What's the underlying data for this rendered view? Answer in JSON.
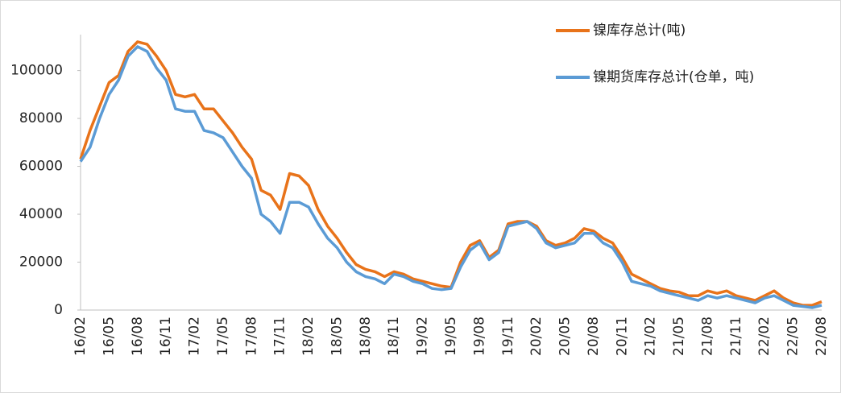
{
  "chart_data": {
    "type": "line",
    "categories": [
      "16/02",
      null,
      null,
      "16/05",
      null,
      null,
      "16/08",
      null,
      null,
      "16/11",
      null,
      null,
      "17/02",
      null,
      null,
      "17/05",
      null,
      null,
      "17/08",
      null,
      null,
      "17/11",
      null,
      null,
      "18/02",
      null,
      null,
      "18/05",
      null,
      null,
      "18/08",
      null,
      null,
      "18/11",
      null,
      null,
      "19/02",
      null,
      null,
      "19/05",
      null,
      null,
      "19/08",
      null,
      null,
      "19/11",
      null,
      null,
      "20/02",
      null,
      null,
      "20/05",
      null,
      null,
      "20/08",
      null,
      null,
      "20/11",
      null,
      null,
      "21/02",
      null,
      null,
      "21/05",
      null,
      null,
      "21/08",
      null,
      null,
      "21/11",
      null,
      null,
      "22/02",
      null,
      null,
      "22/05",
      null,
      null,
      "22/08"
    ],
    "series": [
      {
        "name": "镍库存总计(吨)",
        "color": "#e8731a",
        "values": [
          63000,
          75000,
          85000,
          95000,
          98000,
          108000,
          112000,
          111000,
          106000,
          100000,
          90000,
          89000,
          90000,
          84000,
          84000,
          79000,
          74000,
          68000,
          63000,
          50000,
          48000,
          42000,
          57000,
          56000,
          52000,
          42000,
          35000,
          30000,
          24000,
          19000,
          17000,
          16000,
          14000,
          16000,
          15000,
          13000,
          12000,
          11000,
          10000,
          9500,
          20000,
          27000,
          29000,
          22000,
          25000,
          36000,
          37000,
          37000,
          35000,
          29000,
          27000,
          28000,
          30000,
          34000,
          33000,
          30000,
          28000,
          22000,
          15000,
          13000,
          11000,
          9000,
          8000,
          7500,
          6000,
          6000,
          8000,
          7000,
          8000,
          6000,
          5000,
          4000,
          6000,
          8000,
          5000,
          3000,
          2000,
          2000,
          3500
        ]
      },
      {
        "name": "镍期货库存总计(仓单，吨)",
        "color": "#5b9bd5",
        "values": [
          62000,
          68000,
          80000,
          90000,
          96000,
          106000,
          110000,
          108000,
          101000,
          96000,
          84000,
          83000,
          83000,
          75000,
          74000,
          72000,
          66000,
          60000,
          55000,
          40000,
          37000,
          32000,
          45000,
          45000,
          43000,
          36000,
          30000,
          26000,
          20000,
          16000,
          14000,
          13000,
          11000,
          15000,
          14000,
          12000,
          11000,
          9000,
          8500,
          9000,
          18000,
          25000,
          28000,
          21000,
          24000,
          35000,
          36000,
          37000,
          34000,
          28000,
          26000,
          27000,
          28000,
          32000,
          32000,
          28000,
          26000,
          20000,
          12000,
          11000,
          10000,
          8000,
          7000,
          6000,
          5000,
          4000,
          6000,
          5000,
          6000,
          5000,
          4000,
          3000,
          5000,
          6000,
          4000,
          2000,
          1500,
          1000,
          2000
        ]
      }
    ],
    "ylim": [
      0,
      115000
    ],
    "yticks": [
      0,
      20000,
      40000,
      60000,
      80000,
      100000
    ],
    "grid": false,
    "legend": "top-right"
  }
}
